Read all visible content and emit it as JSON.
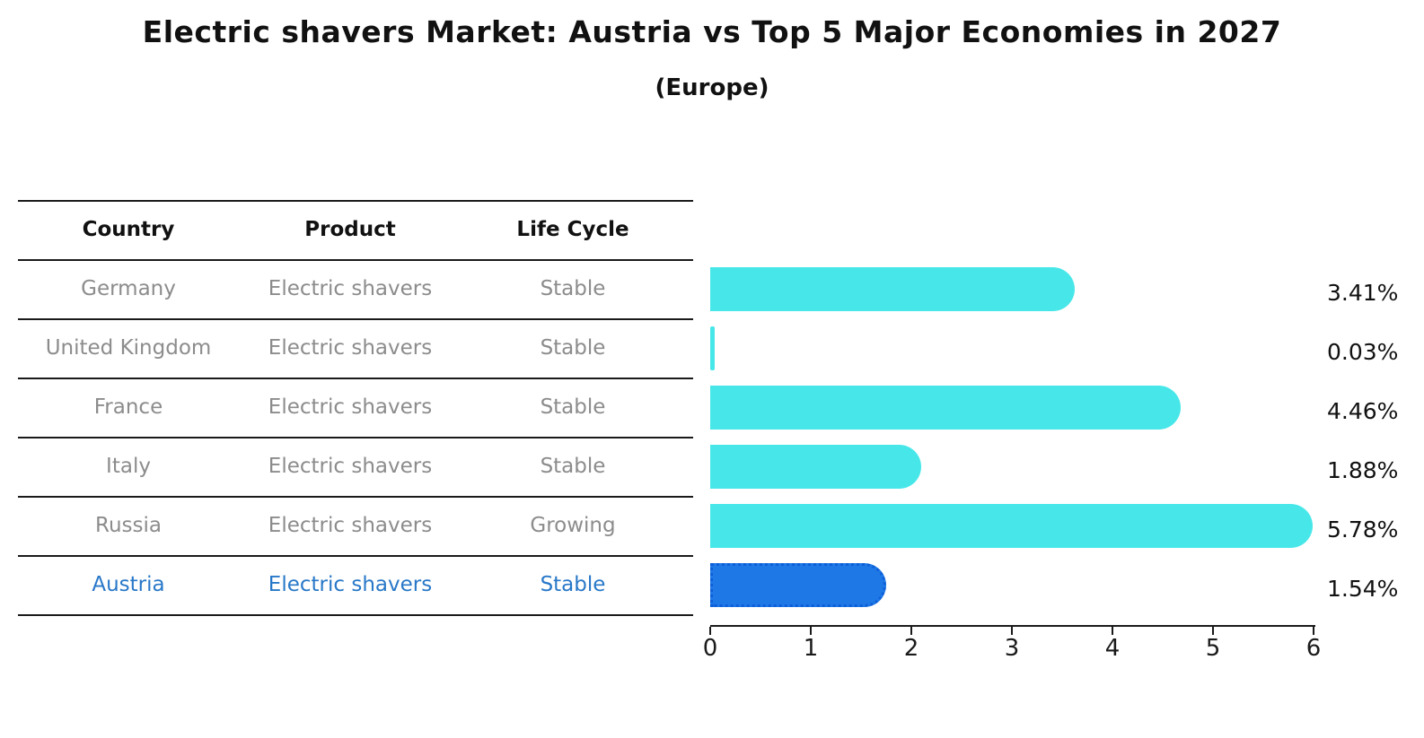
{
  "header": {
    "title": "Electric shavers Market: Austria vs Top 5 Major Economies in 2027",
    "subtitle": "(Europe)"
  },
  "table": {
    "headers": [
      "Country",
      "Product",
      "Life Cycle"
    ],
    "rows": [
      {
        "country": "Germany",
        "product": "Electric shavers",
        "life_cycle": "Stable",
        "highlight": false
      },
      {
        "country": "United Kingdom",
        "product": "Electric shavers",
        "life_cycle": "Stable",
        "highlight": false
      },
      {
        "country": "France",
        "product": "Electric shavers",
        "life_cycle": "Stable",
        "highlight": false
      },
      {
        "country": "Italy",
        "product": "Electric shavers",
        "life_cycle": "Stable",
        "highlight": false
      },
      {
        "country": "Russia",
        "product": "Electric shavers",
        "life_cycle": "Growing",
        "highlight": false
      },
      {
        "country": "Austria",
        "product": "Electric shavers",
        "life_cycle": "Stable",
        "highlight": true
      }
    ]
  },
  "chart_data": {
    "type": "bar",
    "orientation": "horizontal",
    "title": "Electric shavers Market: Austria vs Top 5 Major Economies in 2027",
    "subtitle": "(Europe)",
    "categories": [
      "Germany",
      "United Kingdom",
      "France",
      "Italy",
      "Russia",
      "Austria"
    ],
    "values": [
      3.41,
      0.03,
      4.46,
      1.88,
      5.78,
      1.54
    ],
    "value_labels": [
      "3.41%",
      "0.03%",
      "4.46%",
      "1.88%",
      "5.78%",
      "1.54%"
    ],
    "highlight_index": 5,
    "xlabel": "",
    "ylabel": "",
    "xlim": [
      0,
      6
    ],
    "x_ticks": [
      0,
      1,
      2,
      3,
      4,
      5,
      6
    ],
    "grid": false,
    "legend": false
  },
  "colors": {
    "bar": "#47E7E9",
    "highlight_bar": "#1E78E6",
    "highlight_bar_border": "#0E5FD8",
    "highlight_text": "#2878C8",
    "row_text": "#8c8c8c",
    "line": "#1a1a1a"
  }
}
